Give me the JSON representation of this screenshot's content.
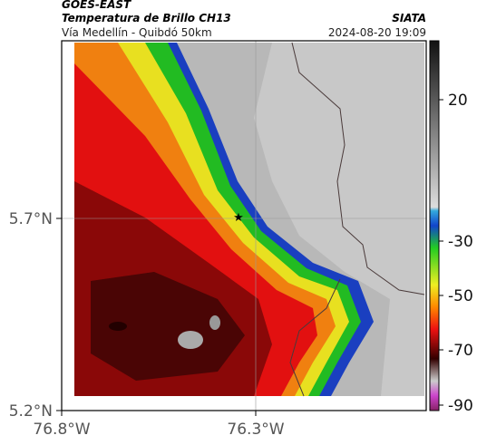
{
  "header": {
    "product": "GOES-EAST",
    "channel": "Temperatura de Brillo CH13",
    "source": "SIATA",
    "location": "Vía Medellín - Quibdó 50km",
    "datetime": "2024-08-20 19:09"
  },
  "axes": {
    "lat_ticks": [
      "5.7°N",
      "5.2°N"
    ],
    "lon_ticks": [
      "76.8°W",
      "76.3°W"
    ]
  },
  "colorbar": {
    "ticks": [
      20,
      -30,
      -50,
      -70,
      -90
    ]
  }
}
